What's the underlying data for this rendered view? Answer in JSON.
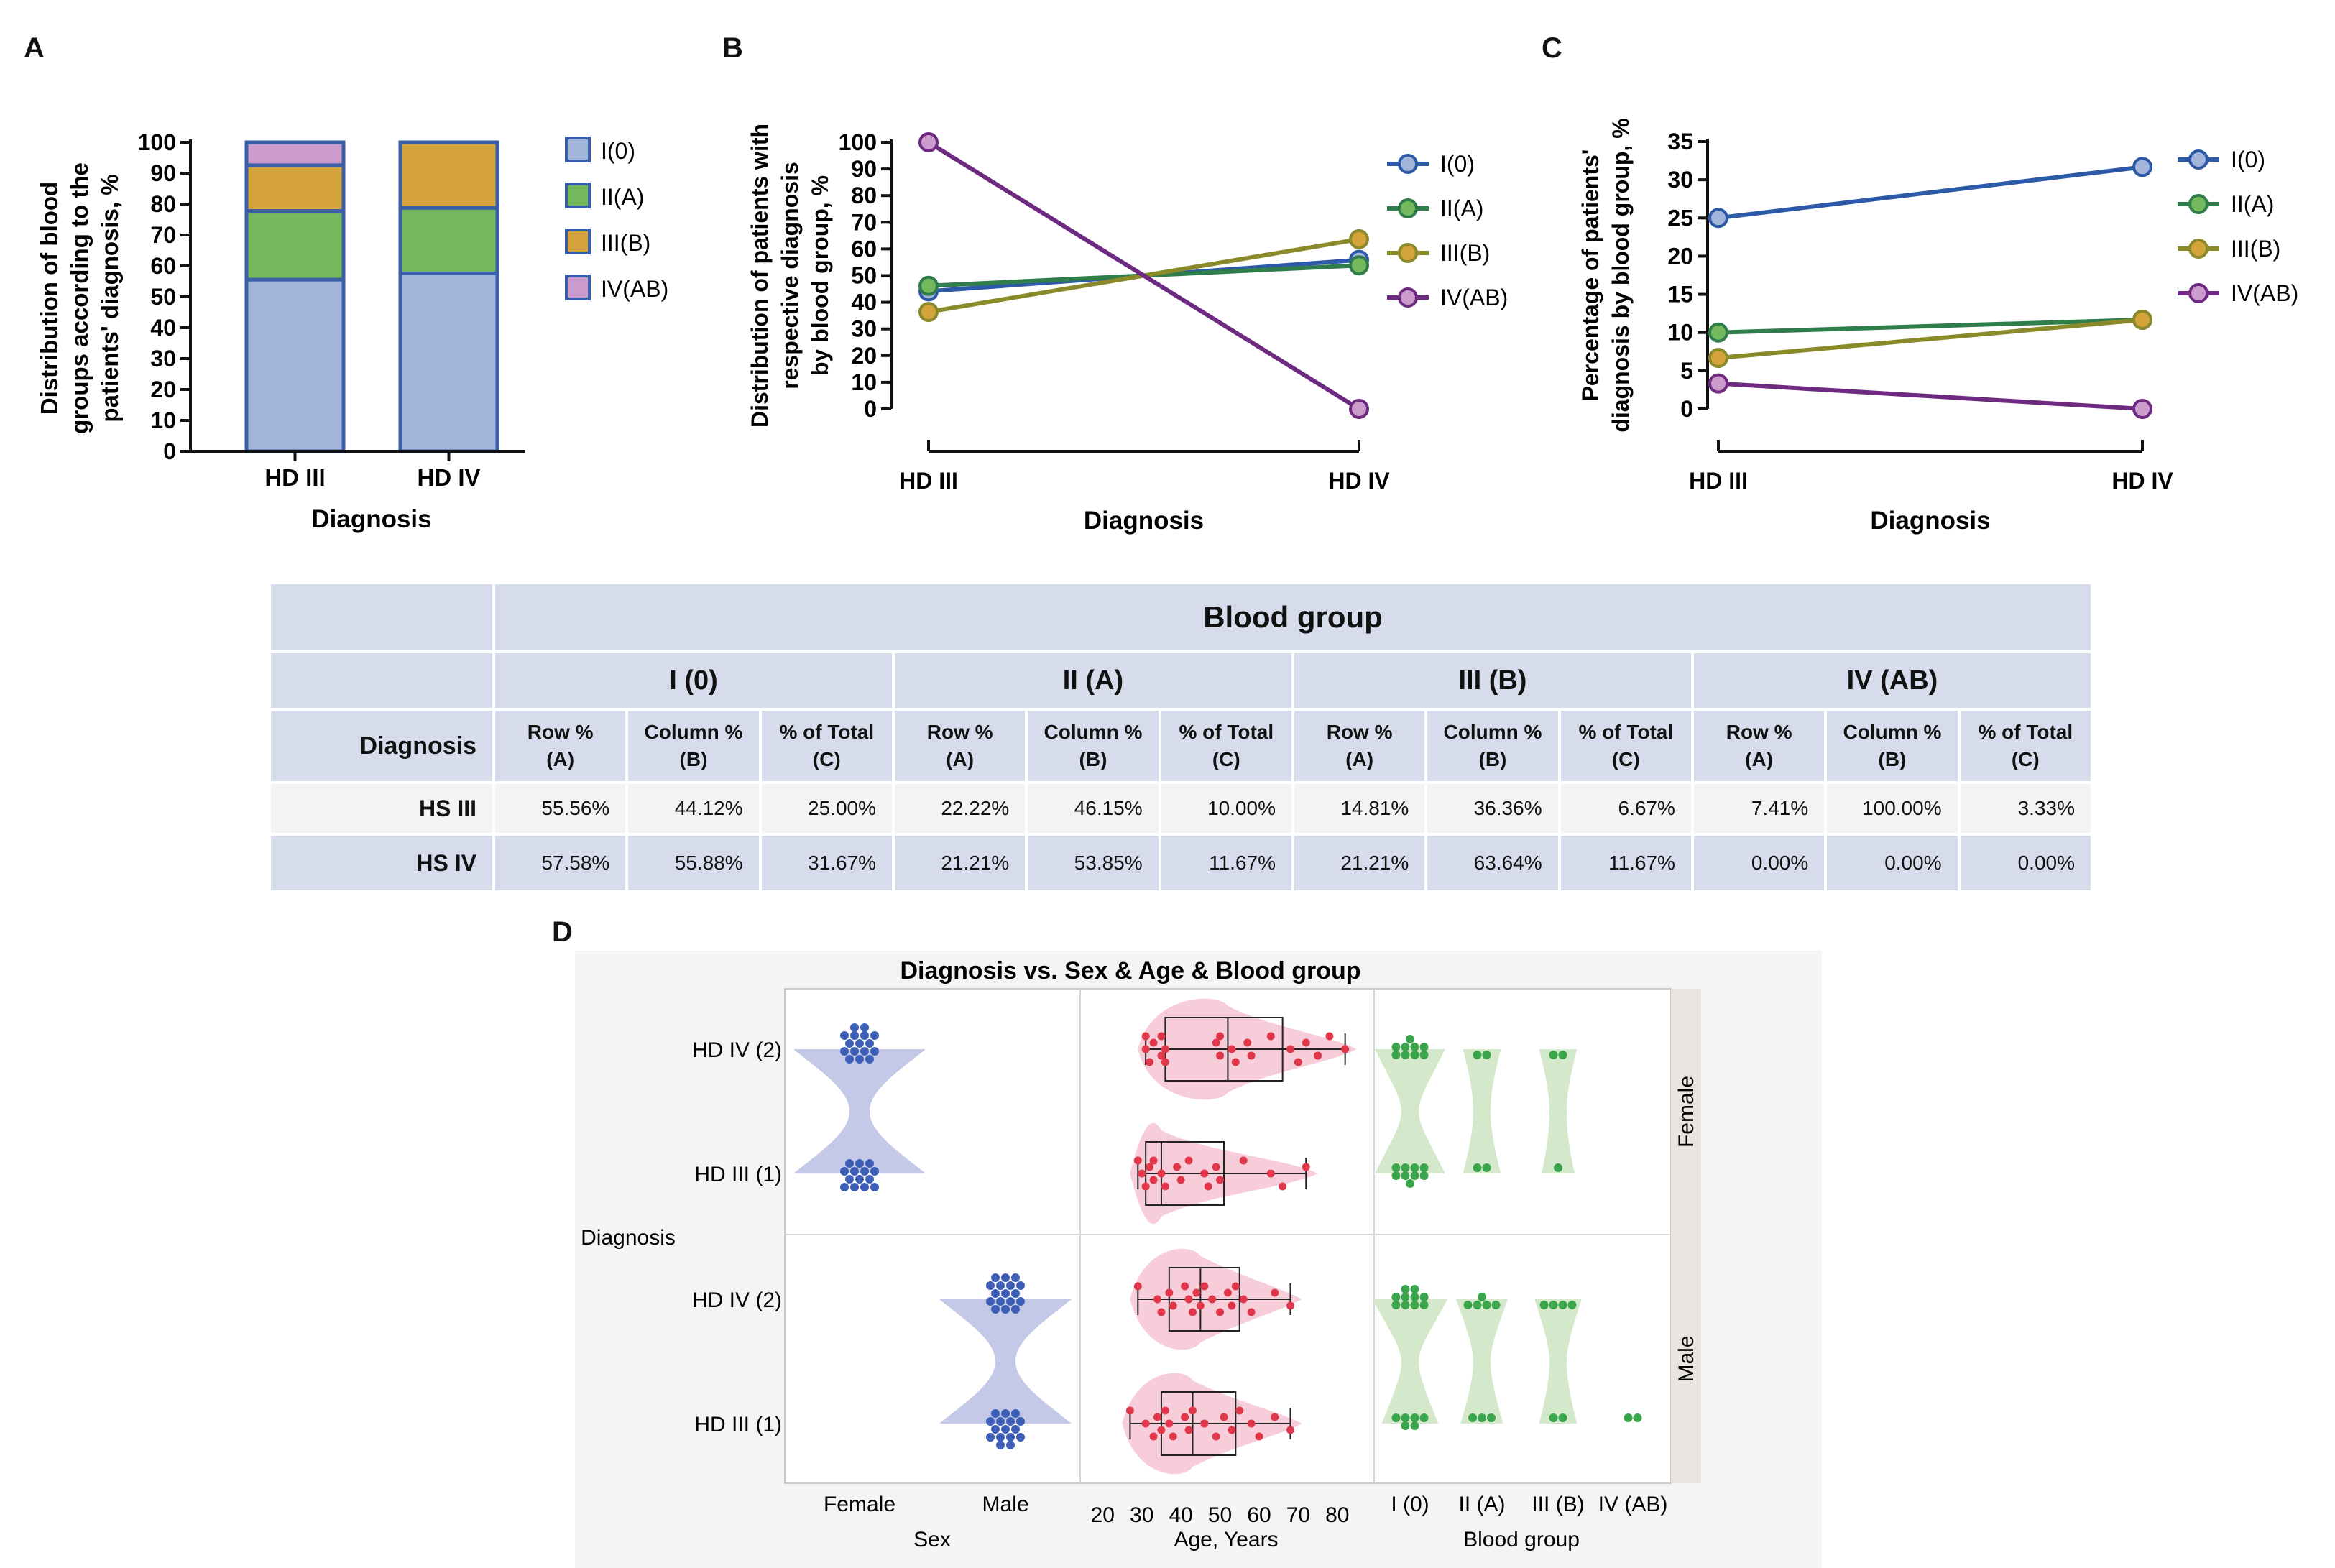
{
  "panels": {
    "a": "A",
    "b": "B",
    "c": "C",
    "d": "D"
  },
  "legend_labels": [
    "I(0)",
    "II(A)",
    "III(B)",
    "IV(AB)"
  ],
  "colors": {
    "I0_fill": "#a3b4da",
    "I0_line": "#2d5aa8",
    "IIA_fill": "#74b95d",
    "IIA_line": "#2e7d4a",
    "IIIB_fill": "#d4a33a",
    "IIIB_line": "#8a8a2a",
    "IVAB_fill": "#cc9dcc",
    "IVAB_line": "#6e2a80",
    "bar_border": "#3a5fa8",
    "table_bg": "#d6dcec",
    "violin_blue": "#b9bfe3",
    "dot_blue": "#3d5fb8",
    "violin_pink": "#f5c4d2",
    "dot_red": "#e0384a",
    "violin_green": "#cfe6c6",
    "dot_green": "#3aa54a"
  },
  "chart_data": [
    {
      "id": "A",
      "type": "bar",
      "stacked": true,
      "categories": [
        "HD III",
        "HD IV"
      ],
      "series": [
        {
          "name": "I(0)",
          "values": [
            55.56,
            57.58
          ]
        },
        {
          "name": "II(A)",
          "values": [
            22.22,
            21.21
          ]
        },
        {
          "name": "III(B)",
          "values": [
            14.81,
            21.21
          ]
        },
        {
          "name": "IV(AB)",
          "values": [
            7.41,
            0.0
          ]
        }
      ],
      "xlabel": "Diagnosis",
      "ylabel_lines": [
        "Distribution of blood",
        "groups according to the",
        "patients' diagnosis, %"
      ],
      "ylim": [
        0,
        100
      ],
      "yticks": [
        0,
        10,
        20,
        30,
        40,
        50,
        60,
        70,
        80,
        90,
        100
      ],
      "legend": "right"
    },
    {
      "id": "B",
      "type": "line",
      "categories": [
        "HD III",
        "HD IV"
      ],
      "series": [
        {
          "name": "I(0)",
          "values": [
            44.12,
            55.88
          ]
        },
        {
          "name": "II(A)",
          "values": [
            46.15,
            53.85
          ]
        },
        {
          "name": "III(B)",
          "values": [
            36.36,
            63.64
          ]
        },
        {
          "name": "IV(AB)",
          "values": [
            100.0,
            0.0
          ]
        }
      ],
      "xlabel": "Diagnosis",
      "ylabel_lines": [
        "Distribution of patients with",
        "respective diagnosis",
        "by blood group, %"
      ],
      "ylim": [
        0,
        100
      ],
      "yticks": [
        0,
        10,
        20,
        30,
        40,
        50,
        60,
        70,
        80,
        90,
        100
      ],
      "legend": "right"
    },
    {
      "id": "C",
      "type": "line",
      "categories": [
        "HD III",
        "HD IV"
      ],
      "series": [
        {
          "name": "I(0)",
          "values": [
            25.0,
            31.67
          ]
        },
        {
          "name": "II(A)",
          "values": [
            10.0,
            11.67
          ]
        },
        {
          "name": "III(B)",
          "values": [
            6.67,
            11.67
          ]
        },
        {
          "name": "IV(AB)",
          "values": [
            3.33,
            0.0
          ]
        }
      ],
      "xlabel": "Diagnosis",
      "ylabel_lines": [
        "Percentage of patients'",
        "diagnosis  by blood group, %"
      ],
      "ylim": [
        0,
        35
      ],
      "yticks": [
        0,
        5,
        10,
        15,
        20,
        25,
        30,
        35
      ],
      "legend": "right"
    },
    {
      "id": "D",
      "type": "scatter",
      "title": "Diagnosis vs. Sex & Age & Blood group",
      "ylabel": "Diagnosis",
      "row_labels": [
        "HD IV (2)",
        "HD III (1)"
      ],
      "facet_labels": [
        "Female",
        "Male"
      ],
      "columns": [
        {
          "title": "Sex",
          "ticks": [
            "Female",
            "Male"
          ]
        },
        {
          "title": "Age, Years",
          "ticks": [
            20,
            30,
            40,
            50,
            60,
            70,
            80
          ],
          "range": [
            17,
            85
          ]
        },
        {
          "title": "Blood group",
          "ticks": [
            "I (0)",
            "II (A)",
            "III (B)",
            "IV (AB)"
          ]
        }
      ],
      "groups": [
        {
          "facet": "Female",
          "diagnosis": "HD IV (2)",
          "sex": "Female",
          "sex_n": 16,
          "ages": [
            31,
            31,
            32,
            33,
            35,
            35,
            36,
            36,
            49,
            50,
            50,
            53,
            54,
            57,
            58,
            63,
            68,
            70,
            72,
            75,
            78,
            82
          ],
          "age_box": {
            "min": 31,
            "q1": 36,
            "median": 52,
            "q3": 66,
            "max": 82
          },
          "blood_counts": [
            9,
            2,
            2,
            0
          ]
        },
        {
          "facet": "Female",
          "diagnosis": "HD III (1)",
          "sex": "Female",
          "sex_n": 14,
          "ages": [
            29,
            30,
            31,
            32,
            33,
            33,
            35,
            36,
            39,
            40,
            42,
            46,
            47,
            49,
            50,
            56,
            63,
            66,
            72
          ],
          "age_box": {
            "min": 29,
            "q1": 31,
            "median": 35,
            "q3": 51,
            "max": 72
          },
          "blood_counts": [
            9,
            2,
            1,
            0
          ]
        },
        {
          "facet": "Male",
          "diagnosis": "HD IV (2)",
          "sex": "Male",
          "sex_n": 17,
          "ages": [
            29,
            34,
            35,
            37,
            38,
            41,
            42,
            43,
            44,
            45,
            46,
            48,
            50,
            52,
            53,
            54,
            56,
            58,
            64,
            68
          ],
          "age_box": {
            "min": 29,
            "q1": 37,
            "median": 45,
            "q3": 55,
            "max": 68
          },
          "blood_counts": [
            10,
            5,
            4,
            0
          ]
        },
        {
          "facet": "Male",
          "diagnosis": "HD III (1)",
          "sex": "Male",
          "sex_n": 16,
          "ages": [
            27,
            31,
            33,
            34,
            35,
            36,
            37,
            38,
            41,
            42,
            43,
            46,
            49,
            51,
            53,
            55,
            58,
            60,
            64,
            68
          ],
          "age_box": {
            "min": 27,
            "q1": 35,
            "median": 43,
            "q3": 54,
            "max": 68
          },
          "blood_counts": [
            6,
            3,
            2,
            2
          ]
        }
      ]
    }
  ],
  "table": {
    "header": "Blood group",
    "groups": [
      "I (0)",
      "II (A)",
      "III (B)",
      "IV (AB)"
    ],
    "diagnosis_label": "Diagnosis",
    "subheaders": [
      [
        "Row %",
        "(A)"
      ],
      [
        "Column %",
        "(B)"
      ],
      [
        "% of Total",
        "(C)"
      ],
      [
        "Row %",
        "(A)"
      ],
      [
        "Column %",
        "(B)"
      ],
      [
        "% of Total",
        "(C)"
      ],
      [
        "Row %",
        "(A)"
      ],
      [
        "Column %",
        "(B)"
      ],
      [
        "% of Total",
        "(C)"
      ],
      [
        "Row %",
        "(A)"
      ],
      [
        "Column %",
        "(B)"
      ],
      [
        "% of Total",
        "(C)"
      ]
    ],
    "rows": [
      {
        "label": "HS III",
        "values": [
          "55.56%",
          "44.12%",
          "25.00%",
          "22.22%",
          "46.15%",
          "10.00%",
          "14.81%",
          "36.36%",
          "6.67%",
          "7.41%",
          "100.00%",
          "3.33%"
        ]
      },
      {
        "label": "HS IV",
        "values": [
          "57.58%",
          "55.88%",
          "31.67%",
          "21.21%",
          "53.85%",
          "11.67%",
          "21.21%",
          "63.64%",
          "11.67%",
          "0.00%",
          "0.00%",
          "0.00%"
        ]
      }
    ]
  }
}
